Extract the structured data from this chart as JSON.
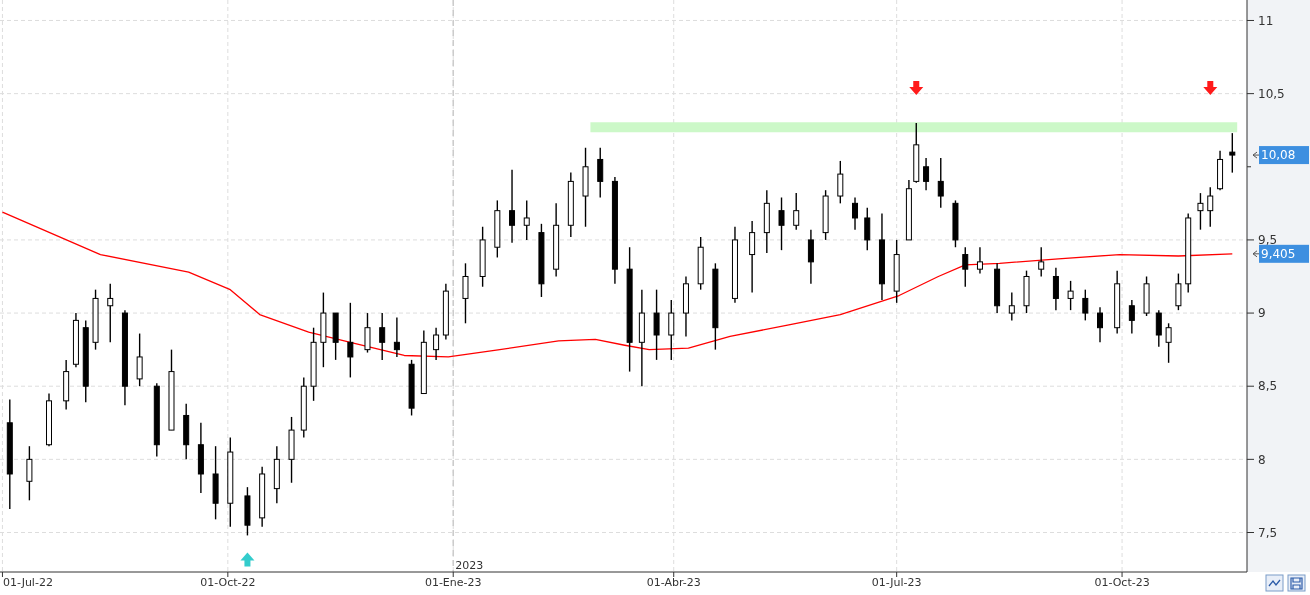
{
  "chart_data": {
    "type": "candlestick",
    "color": "#000000",
    "x": [
      "2022-07-04",
      "2022-07-12",
      "2022-07-20",
      "2022-07-27",
      "2022-07-31",
      "2022-08-04",
      "2022-08-08",
      "2022-08-14",
      "2022-08-20",
      "2022-08-26",
      "2022-09-02",
      "2022-09-08",
      "2022-09-14",
      "2022-09-20",
      "2022-09-26",
      "2022-10-02",
      "2022-10-09",
      "2022-10-15",
      "2022-10-21",
      "2022-10-27",
      "2022-11-01",
      "2022-11-05",
      "2022-11-09",
      "2022-11-14",
      "2022-11-20",
      "2022-11-27",
      "2022-12-03",
      "2022-12-09",
      "2022-12-15",
      "2022-12-20",
      "2022-12-25",
      "2022-12-29",
      "2023-01-06",
      "2023-01-13",
      "2023-01-19",
      "2023-01-25",
      "2023-01-31",
      "2023-02-06",
      "2023-02-12",
      "2023-02-18",
      "2023-02-24",
      "2023-03-02",
      "2023-03-08",
      "2023-03-14",
      "2023-03-19",
      "2023-03-25",
      "2023-03-31",
      "2023-04-06",
      "2023-04-12",
      "2023-04-18",
      "2023-04-26",
      "2023-05-03",
      "2023-05-09",
      "2023-05-15",
      "2023-05-21",
      "2023-05-27",
      "2023-06-02",
      "2023-06-08",
      "2023-06-14",
      "2023-06-19",
      "2023-06-25",
      "2023-07-01",
      "2023-07-06",
      "2023-07-09",
      "2023-07-13",
      "2023-07-19",
      "2023-07-25",
      "2023-07-29",
      "2023-08-04",
      "2023-08-11",
      "2023-08-17",
      "2023-08-23",
      "2023-08-29",
      "2023-09-04",
      "2023-09-10",
      "2023-09-16",
      "2023-09-22",
      "2023-09-29",
      "2023-10-05",
      "2023-10-11",
      "2023-10-16",
      "2023-10-20",
      "2023-10-24",
      "2023-10-28",
      "2023-11-02",
      "2023-11-06",
      "2023-11-10",
      "2023-11-15"
    ],
    "ohlc": [
      [
        8.25,
        8.41,
        7.66,
        7.9
      ],
      [
        7.85,
        8.09,
        7.72,
        8.0
      ],
      [
        8.1,
        8.45,
        8.09,
        8.4
      ],
      [
        8.4,
        8.68,
        8.34,
        8.6
      ],
      [
        8.65,
        9.0,
        8.63,
        8.95
      ],
      [
        8.9,
        8.95,
        8.39,
        8.5
      ],
      [
        8.8,
        9.16,
        8.75,
        9.1
      ],
      [
        9.05,
        9.2,
        8.8,
        9.1
      ],
      [
        9.0,
        9.02,
        8.37,
        8.5
      ],
      [
        8.55,
        8.86,
        8.5,
        8.7
      ],
      [
        8.5,
        8.52,
        8.02,
        8.1
      ],
      [
        8.2,
        8.75,
        8.2,
        8.6
      ],
      [
        8.3,
        8.38,
        8.0,
        8.1
      ],
      [
        8.1,
        8.25,
        7.77,
        7.9
      ],
      [
        7.9,
        8.09,
        7.59,
        7.7
      ],
      [
        7.7,
        8.15,
        7.54,
        8.05
      ],
      [
        7.75,
        7.81,
        7.48,
        7.55
      ],
      [
        7.6,
        7.95,
        7.54,
        7.9
      ],
      [
        7.8,
        8.09,
        7.7,
        8.0
      ],
      [
        8.0,
        8.29,
        7.84,
        8.2
      ],
      [
        8.2,
        8.56,
        8.15,
        8.5
      ],
      [
        8.5,
        8.9,
        8.4,
        8.8
      ],
      [
        8.8,
        9.14,
        8.63,
        9.0
      ],
      [
        9.0,
        9.0,
        8.68,
        8.8
      ],
      [
        8.8,
        9.07,
        8.56,
        8.7
      ],
      [
        8.75,
        9.0,
        8.73,
        8.9
      ],
      [
        8.9,
        9.0,
        8.68,
        8.8
      ],
      [
        8.8,
        8.97,
        8.7,
        8.75
      ],
      [
        8.65,
        8.68,
        8.3,
        8.35
      ],
      [
        8.45,
        8.88,
        8.45,
        8.8
      ],
      [
        8.75,
        8.9,
        8.68,
        8.85
      ],
      [
        8.85,
        9.2,
        8.82,
        9.15
      ],
      [
        9.1,
        9.34,
        8.93,
        9.25
      ],
      [
        9.25,
        9.59,
        9.18,
        9.5
      ],
      [
        9.45,
        9.77,
        9.38,
        9.7
      ],
      [
        9.7,
        9.98,
        9.48,
        9.6
      ],
      [
        9.6,
        9.77,
        9.5,
        9.65
      ],
      [
        9.55,
        9.61,
        9.11,
        9.2
      ],
      [
        9.3,
        9.75,
        9.25,
        9.6
      ],
      [
        9.6,
        9.96,
        9.52,
        9.9
      ],
      [
        9.8,
        10.13,
        9.59,
        10.0
      ],
      [
        10.05,
        10.13,
        9.79,
        9.9
      ],
      [
        9.9,
        9.93,
        9.2,
        9.3
      ],
      [
        9.3,
        9.45,
        8.6,
        8.8
      ],
      [
        8.8,
        9.16,
        8.5,
        9.0
      ],
      [
        9.0,
        9.16,
        8.68,
        8.85
      ],
      [
        8.85,
        9.09,
        8.68,
        9.0
      ],
      [
        9.0,
        9.25,
        8.84,
        9.2
      ],
      [
        9.2,
        9.52,
        9.16,
        9.45
      ],
      [
        9.3,
        9.34,
        8.75,
        8.9
      ],
      [
        9.1,
        9.59,
        9.07,
        9.5
      ],
      [
        9.4,
        9.63,
        9.14,
        9.55
      ],
      [
        9.55,
        9.84,
        9.41,
        9.75
      ],
      [
        9.7,
        9.79,
        9.43,
        9.6
      ],
      [
        9.6,
        9.82,
        9.57,
        9.7
      ],
      [
        9.5,
        9.57,
        9.2,
        9.35
      ],
      [
        9.55,
        9.84,
        9.5,
        9.8
      ],
      [
        9.8,
        10.04,
        9.75,
        9.95
      ],
      [
        9.75,
        9.79,
        9.57,
        9.65
      ],
      [
        9.65,
        9.72,
        9.43,
        9.5
      ],
      [
        9.5,
        9.68,
        9.09,
        9.2
      ],
      [
        9.15,
        9.5,
        9.07,
        9.4
      ],
      [
        9.5,
        9.91,
        9.5,
        9.85
      ],
      [
        9.9,
        10.3,
        9.89,
        10.15
      ],
      [
        10.0,
        10.06,
        9.84,
        9.9
      ],
      [
        9.9,
        10.06,
        9.72,
        9.8
      ],
      [
        9.75,
        9.77,
        9.45,
        9.5
      ],
      [
        9.4,
        9.45,
        9.18,
        9.3
      ],
      [
        9.3,
        9.45,
        9.27,
        9.35
      ],
      [
        9.3,
        9.34,
        9.0,
        9.05
      ],
      [
        9.0,
        9.14,
        8.95,
        9.05
      ],
      [
        9.05,
        9.29,
        9.0,
        9.25
      ],
      [
        9.3,
        9.45,
        9.25,
        9.35
      ],
      [
        9.25,
        9.31,
        9.02,
        9.1
      ],
      [
        9.1,
        9.22,
        9.02,
        9.15
      ],
      [
        9.1,
        9.16,
        8.95,
        9.0
      ],
      [
        9.0,
        9.04,
        8.8,
        8.9
      ],
      [
        8.9,
        9.29,
        8.86,
        9.2
      ],
      [
        9.05,
        9.09,
        8.86,
        8.95
      ],
      [
        9.0,
        9.25,
        8.98,
        9.2
      ],
      [
        9.0,
        9.02,
        8.77,
        8.85
      ],
      [
        8.8,
        8.93,
        8.66,
        8.9
      ],
      [
        9.05,
        9.27,
        9.02,
        9.2
      ],
      [
        9.2,
        9.68,
        9.14,
        9.65
      ],
      [
        9.7,
        9.82,
        9.57,
        9.75
      ],
      [
        9.7,
        9.86,
        9.59,
        9.8
      ],
      [
        9.85,
        10.11,
        9.84,
        10.05
      ],
      [
        10.1,
        10.23,
        9.96,
        10.08
      ]
    ],
    "series": [
      {
        "type": "line",
        "color": "#ccf8c8",
        "x": [
          "2023-02-26",
          "2023-11-17"
        ],
        "values": [
          10.27,
          10.27
        ]
      },
      {
        "type": "line",
        "color": "#ff0000",
        "x": [
          "2022-07-01",
          "2022-08-10",
          "2022-09-15",
          "2022-10-02",
          "2022-10-14",
          "2022-11-03",
          "2022-11-20",
          "2022-12-12",
          "2022-12-30",
          "2023-01-20",
          "2023-02-13",
          "2023-02-28",
          "2023-03-12",
          "2023-03-22",
          "2023-04-07",
          "2023-04-24",
          "2023-05-18",
          "2023-06-08",
          "2023-07-02",
          "2023-07-18",
          "2023-07-29",
          "2023-08-12",
          "2023-09-05",
          "2023-09-30",
          "2023-10-24",
          "2023-11-15"
        ],
        "values": [
          9.69,
          9.4,
          9.28,
          9.16,
          8.99,
          8.87,
          8.8,
          8.71,
          8.7,
          8.75,
          8.81,
          8.82,
          8.78,
          8.75,
          8.76,
          8.84,
          8.92,
          8.99,
          9.12,
          9.25,
          9.33,
          9.34,
          9.37,
          9.4,
          9.39,
          9.405
        ]
      }
    ],
    "xlim": [
      "2022-06-30",
      "2023-11-21"
    ],
    "xticks": [
      {
        "value": "2022-07-01",
        "label": "01-Jul-22"
      },
      {
        "value": "2022-10-01",
        "label": "01-Oct-22"
      },
      {
        "value": "2023-01-01",
        "label": "01-Ene-23"
      },
      {
        "value": "2023-04-01",
        "label": "01-Abr-23"
      },
      {
        "value": "2023-07-01",
        "label": "01-Jul-23"
      },
      {
        "value": "2023-10-01",
        "label": "01-Oct-23"
      }
    ],
    "ylim": [
      7.23,
      11.14
    ],
    "yticks": [
      {
        "value": 7.5,
        "label": "7,5"
      },
      8,
      {
        "value": 8.5,
        "label": "8,5"
      },
      9,
      {
        "value": 9.5,
        "label": "9,5"
      },
      {
        "value": 10,
        "label": null
      },
      {
        "value": 10.5,
        "label": "10,5"
      },
      11
    ],
    "grid": true,
    "ref_lines": [
      {
        "axis": "x",
        "value": "2023-01-01",
        "label": "2023",
        "color": "#cccccc",
        "line_style": "dashed"
      }
    ],
    "annotations": [
      "10,08",
      "9,405"
    ]
  }
}
